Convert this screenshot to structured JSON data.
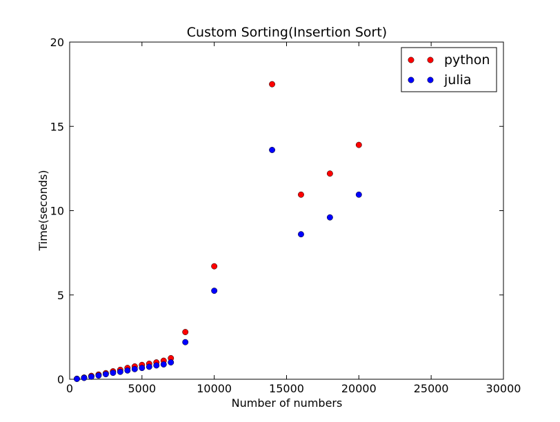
{
  "chart_data": {
    "type": "scatter",
    "title": "Custom Sorting(Insertion Sort)",
    "xlabel": "Number of numbers",
    "ylabel": "Time(seconds)",
    "xlim": [
      0,
      30000
    ],
    "ylim": [
      0,
      20
    ],
    "xticks": [
      0,
      5000,
      10000,
      15000,
      20000,
      25000,
      30000
    ],
    "yticks": [
      0,
      5,
      10,
      15,
      20
    ],
    "grid": false,
    "legend_position": "top-right",
    "series": [
      {
        "name": "python",
        "color": "#ff0000",
        "x": [
          500,
          1000,
          1500,
          2000,
          2500,
          3000,
          3500,
          4000,
          4500,
          5000,
          5500,
          6000,
          6500,
          7000,
          8000,
          10000,
          14000,
          16000,
          18000,
          20000
        ],
        "y": [
          0.03,
          0.1,
          0.2,
          0.28,
          0.36,
          0.47,
          0.56,
          0.67,
          0.76,
          0.85,
          0.92,
          1.0,
          1.1,
          1.25,
          2.8,
          6.7,
          17.5,
          10.95,
          12.2,
          13.9
        ]
      },
      {
        "name": "julia",
        "color": "#0000ff",
        "x": [
          500,
          1000,
          1500,
          2000,
          2500,
          3000,
          3500,
          4000,
          4500,
          5000,
          5500,
          6000,
          6500,
          7000,
          8000,
          10000,
          14000,
          16000,
          18000,
          20000
        ],
        "y": [
          0.02,
          0.08,
          0.15,
          0.22,
          0.3,
          0.38,
          0.44,
          0.52,
          0.6,
          0.67,
          0.74,
          0.82,
          0.88,
          1.0,
          2.2,
          5.25,
          13.6,
          8.6,
          9.6,
          10.95
        ]
      }
    ]
  }
}
